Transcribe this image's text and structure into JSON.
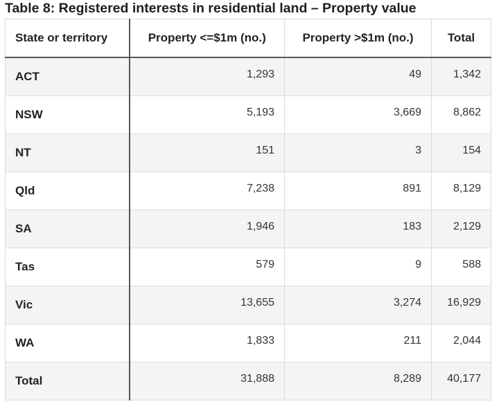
{
  "title": "Table 8: Registered interests in residential land – Property value",
  "table": {
    "header": [
      "State or territory",
      "Property <=$1m (no.)",
      "Property >$1m (no.)",
      "Total"
    ],
    "rows": [
      [
        "ACT",
        "1,293",
        "49",
        "1,342"
      ],
      [
        "NSW",
        "5,193",
        "3,669",
        "8,862"
      ],
      [
        "NT",
        "151",
        "3",
        "154"
      ],
      [
        "Qld",
        "7,238",
        "891",
        "8,129"
      ],
      [
        "SA",
        "1,946",
        "183",
        "2,129"
      ],
      [
        "Tas",
        "579",
        "9",
        "588"
      ],
      [
        "Vic",
        "13,655",
        "3,274",
        "16,929"
      ],
      [
        "WA",
        "1,833",
        "211",
        "2,044"
      ],
      [
        "Total",
        "31,888",
        "8,289",
        "40,177"
      ]
    ]
  }
}
